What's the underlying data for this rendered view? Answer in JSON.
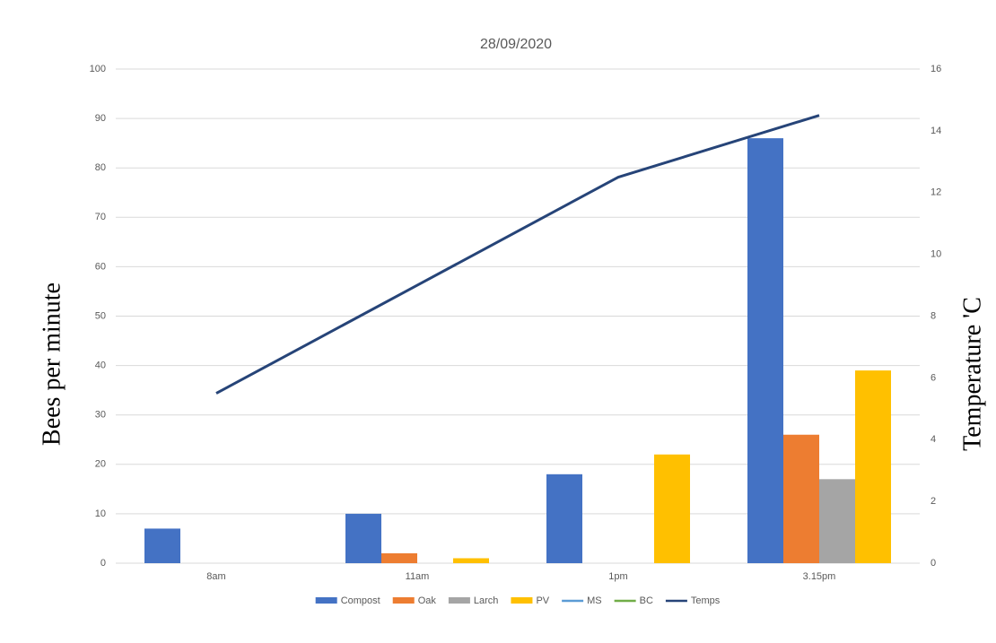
{
  "chart_data": {
    "type": "bar",
    "title": "28/09/2020",
    "y_label": "Bees per minute",
    "y2_label": "Temperature 'C",
    "categories": [
      "8am",
      "11am",
      "1pm",
      "3.15pm"
    ],
    "series": [
      {
        "name": "Compost",
        "type": "bar",
        "color": "#4472c4",
        "values": [
          7,
          10,
          18,
          86
        ]
      },
      {
        "name": "Oak",
        "type": "bar",
        "color": "#ed7d31",
        "values": [
          0,
          2,
          0,
          26
        ]
      },
      {
        "name": "Larch",
        "type": "bar",
        "color": "#a5a5a5",
        "values": [
          0,
          0,
          0,
          17
        ]
      },
      {
        "name": "PV",
        "type": "bar",
        "color": "#ffc000",
        "values": [
          0,
          1,
          22,
          39
        ]
      },
      {
        "name": "MS",
        "type": "line",
        "color": "#5b9bd5",
        "values": [
          null,
          null,
          null,
          null
        ]
      },
      {
        "name": "BC",
        "type": "line",
        "color": "#70ad47",
        "values": [
          null,
          null,
          null,
          null
        ]
      },
      {
        "name": "Temps",
        "type": "line",
        "axis": "y2",
        "color": "#264478",
        "values": [
          5.5,
          9,
          12.5,
          14.5
        ]
      }
    ],
    "ylim": [
      0,
      100
    ],
    "yticks": [
      0,
      10,
      20,
      30,
      40,
      50,
      60,
      70,
      80,
      90,
      100
    ],
    "y2lim": [
      0,
      16
    ],
    "y2ticks": [
      0,
      2,
      4,
      6,
      8,
      10,
      12,
      14,
      16
    ],
    "grid": true,
    "legend": "bottom"
  }
}
